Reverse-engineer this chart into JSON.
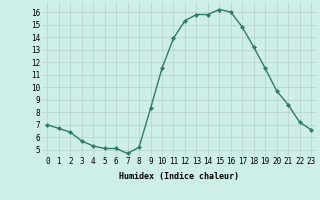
{
  "x": [
    0,
    1,
    2,
    3,
    4,
    5,
    6,
    7,
    8,
    9,
    10,
    11,
    12,
    13,
    14,
    15,
    16,
    17,
    18,
    19,
    20,
    21,
    22,
    23
  ],
  "y": [
    7.0,
    6.7,
    6.4,
    5.7,
    5.3,
    5.1,
    5.1,
    4.7,
    5.2,
    8.3,
    11.5,
    13.9,
    15.3,
    15.8,
    15.8,
    16.2,
    16.0,
    14.8,
    13.2,
    11.5,
    9.7,
    8.6,
    7.2,
    6.6
  ],
  "line_color": "#2d7d6b",
  "marker": "D",
  "markersize": 2.0,
  "linewidth": 1.0,
  "background_color": "#ceeee8",
  "grid_color": "#b8d0cc",
  "xlabel": "Humidex (Indice chaleur)",
  "xlim": [
    -0.5,
    23.5
  ],
  "ylim": [
    4.5,
    16.8
  ],
  "ytick_vals": [
    5,
    6,
    7,
    8,
    9,
    10,
    11,
    12,
    13,
    14,
    15,
    16
  ],
  "label_fontsize": 6.0,
  "tick_fontsize": 5.5
}
